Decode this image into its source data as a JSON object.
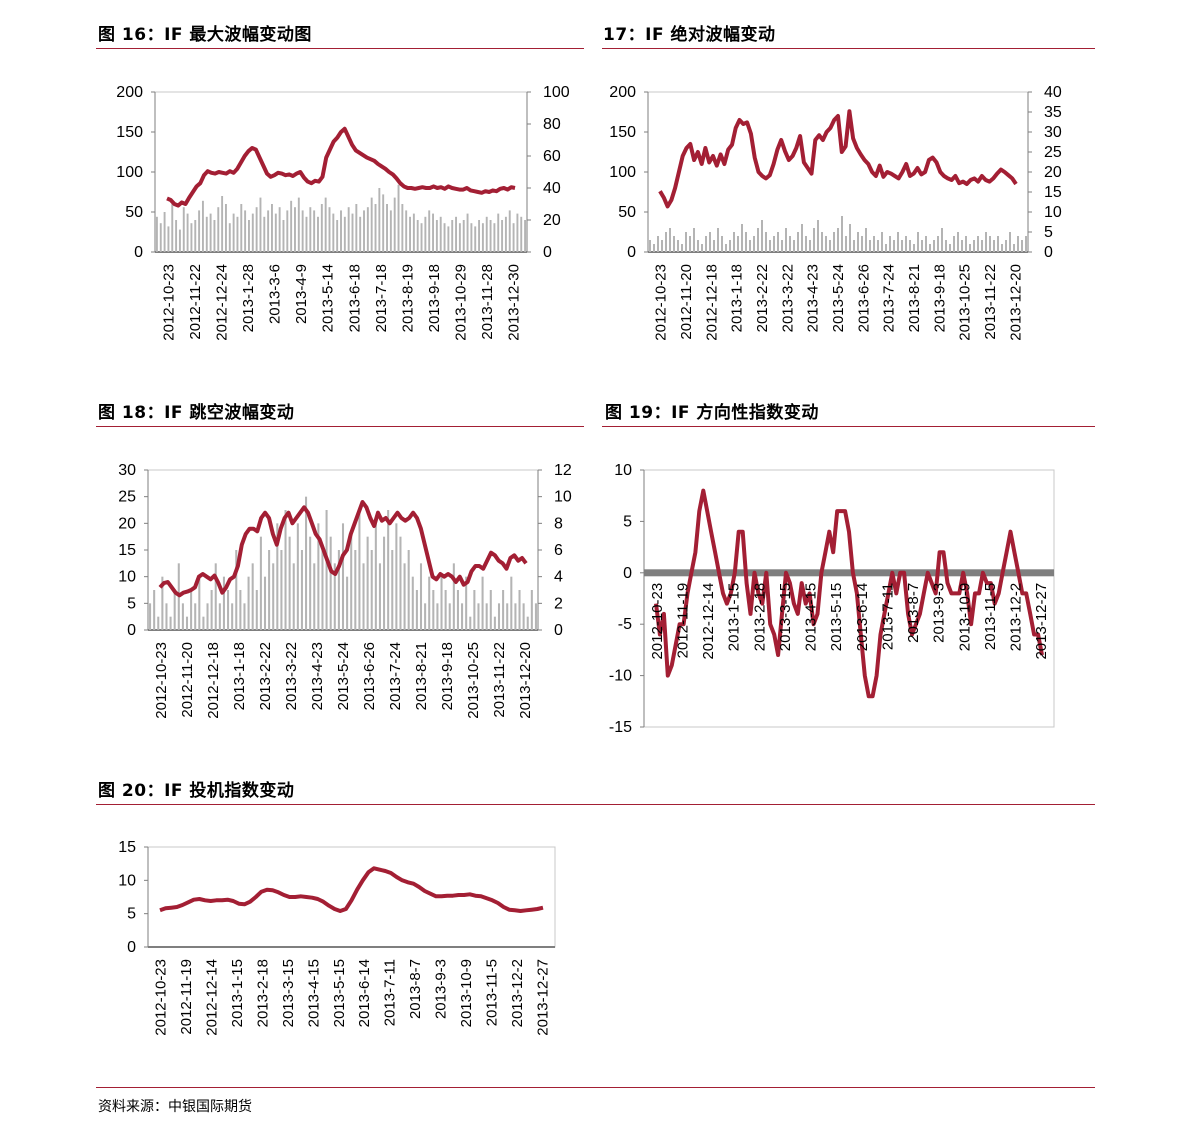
{
  "titles": {
    "fig16": "图 16：IF 最大波幅变动图",
    "fig17": "17：IF 绝对波幅变动",
    "fig18": "图 18：IF 跳空波幅变动",
    "fig19": "图 19：IF 方向性指数变动",
    "fig20": "图 20：IF 投机指数变动"
  },
  "source": "资料来源：中银国际期货",
  "colors": {
    "line": "#a31f34",
    "bars": "#b4b4b4",
    "axis": "#7f7f7f",
    "zero_band": "#7f7f7f",
    "rule": "#a31f34"
  },
  "chart_data": [
    {
      "id": "fig16",
      "type": "bar+line",
      "x_ticks": [
        "2012-10-23",
        "2012-11-22",
        "2012-12-24",
        "2013-1-28",
        "2013-3-6",
        "2013-4-9",
        "2013-5-14",
        "2013-6-18",
        "2013-7-18",
        "2013-8-19",
        "2013-9-18",
        "2013-10-29",
        "2013-11-28",
        "2013-12-30"
      ],
      "ylim_left": [
        0,
        200
      ],
      "yticks_left": [
        "200",
        "150",
        "100",
        "50",
        "0"
      ],
      "ylim_right": [
        0,
        100
      ],
      "yticks_right": [
        "100",
        "80",
        "60",
        "40",
        "20",
        "0"
      ],
      "series": [
        {
          "axis": "right",
          "kind": "bar",
          "values": [
            22,
            18,
            25,
            16,
            30,
            20,
            14,
            28,
            24,
            18,
            20,
            26,
            32,
            22,
            24,
            20,
            28,
            35,
            30,
            18,
            24,
            22,
            30,
            26,
            20,
            24,
            28,
            34,
            22,
            26,
            30,
            24,
            28,
            20,
            26,
            32,
            28,
            34,
            26,
            22,
            28,
            26,
            22,
            30,
            34,
            28,
            24,
            20,
            26,
            22,
            28,
            24,
            30,
            22,
            26,
            28,
            34,
            30,
            40,
            36,
            30,
            26,
            34,
            42,
            30,
            26,
            22,
            24,
            20,
            18,
            22,
            26,
            24,
            20,
            22,
            18,
            16,
            20,
            22,
            18,
            20,
            24,
            18,
            16,
            20,
            18,
            22,
            20,
            18,
            24,
            20,
            22,
            26,
            18,
            24,
            22,
            20
          ]
        },
        {
          "axis": "left",
          "kind": "line",
          "values": [
            67,
            65,
            60,
            58,
            62,
            60,
            68,
            75,
            82,
            86,
            96,
            101,
            99,
            98,
            100,
            99,
            98,
            101,
            99,
            104,
            112,
            120,
            126,
            130,
            128,
            118,
            108,
            98,
            94,
            96,
            99,
            98,
            96,
            97,
            95,
            98,
            100,
            93,
            88,
            86,
            89,
            88,
            94,
            118,
            128,
            138,
            143,
            150,
            154,
            144,
            134,
            127,
            124,
            121,
            118,
            116,
            114,
            110,
            107,
            104,
            100,
            97,
            92,
            86,
            82,
            80,
            80,
            79,
            80,
            81,
            80,
            80,
            82,
            80,
            81,
            79,
            82,
            80,
            79,
            78,
            78,
            80,
            77,
            76,
            75,
            74,
            76,
            75,
            77,
            76,
            79,
            80,
            78,
            81,
            80
          ]
        }
      ]
    },
    {
      "id": "fig17",
      "type": "bar+line",
      "x_ticks": [
        "2012-10-23",
        "2012-11-20",
        "2012-12-18",
        "2013-1-18",
        "2013-2-22",
        "2013-3-22",
        "2013-4-23",
        "2013-5-24",
        "2013-6-26",
        "2013-7-24",
        "2013-8-21",
        "2013-9-18",
        "2013-10-25",
        "2013-11-22",
        "2013-12-20"
      ],
      "ylim_left": [
        0,
        200
      ],
      "yticks_left": [
        "200",
        "150",
        "100",
        "50",
        "0"
      ],
      "ylim_right": [
        0,
        40
      ],
      "yticks_right": [
        "40",
        "35",
        "30",
        "25",
        "20",
        "15",
        "10",
        "5",
        "0"
      ],
      "series": [
        {
          "axis": "right",
          "kind": "bar",
          "values": [
            3,
            2,
            4,
            3,
            5,
            6,
            4,
            3,
            2,
            5,
            4,
            6,
            3,
            2,
            4,
            5,
            3,
            6,
            4,
            2,
            3,
            5,
            4,
            7,
            5,
            3,
            4,
            6,
            8,
            5,
            3,
            4,
            5,
            3,
            6,
            4,
            3,
            5,
            7,
            4,
            3,
            6,
            8,
            5,
            4,
            3,
            5,
            6,
            9,
            4,
            7,
            3,
            5,
            4,
            6,
            3,
            4,
            3,
            5,
            2,
            4,
            3,
            5,
            3,
            4,
            3,
            2,
            5,
            3,
            4,
            2,
            3,
            4,
            6,
            3,
            2,
            4,
            5,
            3,
            4,
            2,
            3,
            4,
            3,
            5,
            4,
            3,
            4,
            2,
            3,
            5,
            2,
            4,
            3,
            4
          ]
        },
        {
          "axis": "left",
          "kind": "line",
          "values": [
            76,
            68,
            57,
            65,
            80,
            100,
            120,
            130,
            135,
            115,
            125,
            110,
            130,
            112,
            120,
            108,
            122,
            110,
            128,
            134,
            155,
            165,
            160,
            162,
            148,
            118,
            100,
            95,
            92,
            96,
            110,
            128,
            140,
            126,
            115,
            120,
            130,
            145,
            112,
            105,
            98,
            140,
            146,
            140,
            150,
            155,
            165,
            170,
            125,
            132,
            176,
            142,
            130,
            122,
            115,
            110,
            100,
            95,
            108,
            94,
            100,
            98,
            95,
            92,
            100,
            110,
            95,
            98,
            105,
            97,
            100,
            115,
            118,
            112,
            100,
            95,
            92,
            90,
            95,
            86,
            88,
            85,
            90,
            92,
            88,
            95,
            90,
            88,
            92,
            98,
            103,
            100,
            96,
            92,
            85
          ]
        }
      ]
    },
    {
      "id": "fig18",
      "type": "bar+line",
      "x_ticks": [
        "2012-10-23",
        "2012-11-20",
        "2012-12-18",
        "2013-1-18",
        "2013-2-22",
        "2013-3-22",
        "2013-4-23",
        "2013-5-24",
        "2013-6-26",
        "2013-7-24",
        "2013-8-21",
        "2013-9-18",
        "2013-10-25",
        "2013-11-22",
        "2013-12-20"
      ],
      "ylim_left": [
        0,
        30
      ],
      "yticks_left": [
        "30",
        "25",
        "20",
        "15",
        "10",
        "5",
        "0"
      ],
      "ylim_right": [
        0,
        12
      ],
      "yticks_right": [
        "12",
        "10",
        "8",
        "6",
        "4",
        "2",
        "0"
      ],
      "series": [
        {
          "axis": "right",
          "kind": "bar",
          "values": [
            2,
            3,
            1,
            4,
            2,
            1,
            3,
            5,
            2,
            1,
            3,
            2,
            4,
            1,
            2,
            3,
            5,
            2,
            4,
            3,
            2,
            6,
            3,
            2,
            4,
            5,
            3,
            7,
            4,
            6,
            5,
            8,
            6,
            9,
            7,
            5,
            8,
            6,
            10,
            7,
            5,
            8,
            6,
            9,
            7,
            5,
            6,
            8,
            4,
            7,
            6,
            9,
            5,
            7,
            6,
            8,
            5,
            7,
            9,
            6,
            8,
            7,
            5,
            6,
            4,
            3,
            5,
            2,
            4,
            3,
            2,
            4,
            3,
            2,
            5,
            3,
            2,
            4,
            1,
            3,
            2,
            4,
            2,
            3,
            1,
            2,
            3,
            2,
            4,
            2,
            3,
            2,
            1,
            3,
            2
          ]
        },
        {
          "axis": "left",
          "kind": "line",
          "values": [
            8,
            8.8,
            9,
            8,
            7,
            6.5,
            7,
            7.2,
            7.5,
            8,
            10,
            10.5,
            10,
            9.5,
            10.2,
            8.8,
            7,
            8,
            9.5,
            10,
            12,
            16,
            18,
            19,
            19,
            18.5,
            21,
            22,
            21,
            18,
            16,
            19,
            21,
            22,
            20,
            21,
            22,
            23,
            22,
            20,
            18,
            17,
            15,
            13,
            11,
            10.5,
            12,
            14,
            15,
            18,
            20,
            22,
            24,
            23,
            21,
            19.5,
            22,
            20.5,
            21,
            20,
            21,
            22,
            21,
            20.5,
            21,
            22,
            21,
            19,
            16,
            13,
            10,
            9.5,
            10.5,
            10,
            10.5,
            10,
            9,
            10,
            8.5,
            9,
            11,
            12,
            12,
            11.5,
            13,
            14.5,
            14,
            13,
            12.5,
            11.5,
            13.5,
            14,
            13,
            13.5,
            12.5
          ]
        }
      ]
    },
    {
      "id": "fig19",
      "type": "line",
      "x_ticks": [
        "2012-10-23",
        "2012-11-19",
        "2012-12-14",
        "2013-1-15",
        "2013-2-18",
        "2013-3-15",
        "2013-4-15",
        "2013-5-15",
        "2013-6-14",
        "2013-7-11",
        "2013-8-7",
        "2013-9-3",
        "2013-10-9",
        "2013-11-5",
        "2013-12-2",
        "2013-12-27"
      ],
      "ylim": [
        -15,
        10
      ],
      "yticks": [
        "10",
        "5",
        "0",
        "-5",
        "-10",
        "-15"
      ],
      "series": [
        {
          "kind": "line",
          "values": [
            -3,
            -6,
            -4,
            -10,
            -9,
            -7,
            -5,
            -5,
            -2,
            0,
            2,
            6,
            8,
            6,
            4,
            2,
            0,
            -2,
            -3,
            -2,
            0,
            4,
            4,
            -1,
            -4,
            0,
            -2,
            -3,
            0,
            -5,
            -6,
            -8,
            -4,
            0,
            -1,
            -3,
            -4,
            -1,
            -3,
            -2,
            -5,
            -4,
            0,
            2,
            4,
            2,
            6,
            6,
            6,
            4,
            0,
            -2,
            -6,
            -10,
            -12,
            -12,
            -10,
            -6,
            -4,
            -2,
            0,
            -2,
            0,
            0,
            -4,
            -6,
            -5,
            -4,
            -2,
            0,
            -1,
            -2,
            2,
            2,
            -1,
            -2,
            -2,
            -2,
            0,
            -2,
            -5,
            -2,
            -2,
            0,
            -1,
            -1,
            -3,
            -2,
            0,
            2,
            4,
            2,
            0,
            -2,
            -2,
            -4,
            -6,
            -6,
            -8
          ]
        }
      ]
    },
    {
      "id": "fig20",
      "type": "line",
      "x_ticks": [
        "2012-10-23",
        "2012-11-19",
        "2012-12-14",
        "2013-1-15",
        "2013-2-18",
        "2013-3-15",
        "2013-4-15",
        "2013-5-15",
        "2013-6-14",
        "2013-7-11",
        "2013-8-7",
        "2013-9-3",
        "2013-10-9",
        "2013-11-5",
        "2013-12-2",
        "2013-12-27"
      ],
      "ylim": [
        0,
        15
      ],
      "yticks": [
        "15",
        "10",
        "5",
        "0"
      ],
      "series": [
        {
          "kind": "line",
          "values": [
            5.5,
            5.8,
            5.9,
            6.0,
            6.3,
            6.7,
            7.1,
            7.2,
            7.0,
            6.9,
            7.0,
            7.0,
            7.1,
            6.9,
            6.5,
            6.4,
            6.8,
            7.5,
            8.3,
            8.6,
            8.5,
            8.2,
            7.8,
            7.5,
            7.5,
            7.6,
            7.5,
            7.4,
            7.2,
            6.8,
            6.2,
            5.7,
            5.4,
            5.7,
            7.0,
            8.6,
            10.0,
            11.2,
            11.8,
            11.6,
            11.4,
            11.1,
            10.5,
            10.0,
            9.7,
            9.5,
            9.0,
            8.4,
            8.0,
            7.6,
            7.6,
            7.7,
            7.7,
            7.8,
            7.8,
            7.9,
            7.7,
            7.6,
            7.3,
            7.0,
            6.6,
            6.0,
            5.6,
            5.5,
            5.4,
            5.5,
            5.6,
            5.7,
            5.9
          ]
        }
      ]
    }
  ]
}
